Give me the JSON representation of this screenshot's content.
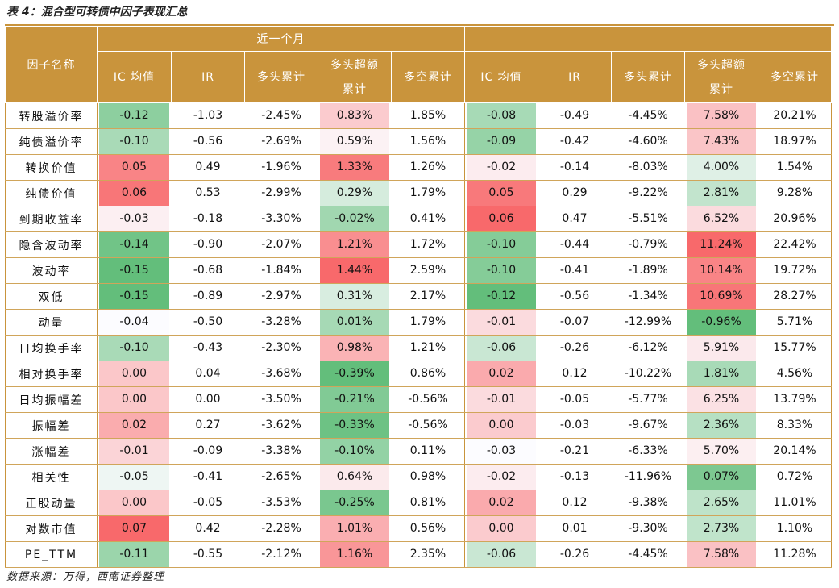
{
  "title": "表 4：混合型可转债中因子表现汇总",
  "source": "数据来源：万得，西南证券整理",
  "header": {
    "factor_col": "因子名称",
    "group1": "近一个月",
    "group2": "",
    "columns": [
      {
        "line1": "IC 均值",
        "line2": ""
      },
      {
        "line1": "IR",
        "line2": ""
      },
      {
        "line1": "多头累计",
        "line2": ""
      },
      {
        "line1": "多头超额",
        "line2": "累计"
      },
      {
        "line1": "多空累计",
        "line2": ""
      }
    ]
  },
  "colors": {
    "header_bg": "#c9943c",
    "green_strong": "#63be7b",
    "red_strong": "#f8696b"
  },
  "rows": [
    {
      "name": "转股溢价率",
      "v": [
        "-0.12",
        "-1.03",
        "-2.45%",
        "0.83%",
        "1.85%",
        "-0.08",
        "-0.49",
        "-4.45%",
        "7.58%",
        "20.21%"
      ]
    },
    {
      "name": "纯债溢价率",
      "v": [
        "-0.10",
        "-0.56",
        "-2.69%",
        "0.59%",
        "1.56%",
        "-0.09",
        "-0.42",
        "-4.60%",
        "7.43%",
        "18.97%"
      ]
    },
    {
      "name": "转换价值",
      "v": [
        "0.05",
        "0.49",
        "-1.96%",
        "1.33%",
        "1.26%",
        "-0.02",
        "-0.14",
        "-8.03%",
        "4.00%",
        "1.54%"
      ]
    },
    {
      "name": "纯债价值",
      "v": [
        "0.06",
        "0.53",
        "-2.99%",
        "0.29%",
        "1.79%",
        "0.05",
        "0.29",
        "-9.22%",
        "2.81%",
        "9.28%"
      ]
    },
    {
      "name": "到期收益率",
      "v": [
        "-0.03",
        "-0.18",
        "-3.30%",
        "-0.02%",
        "0.41%",
        "0.06",
        "0.47",
        "-5.51%",
        "6.52%",
        "20.96%"
      ]
    },
    {
      "name": "隐含波动率",
      "v": [
        "-0.14",
        "-0.90",
        "-2.07%",
        "1.21%",
        "1.72%",
        "-0.10",
        "-0.44",
        "-0.79%",
        "11.24%",
        "22.42%"
      ]
    },
    {
      "name": "波动率",
      "v": [
        "-0.15",
        "-0.68",
        "-1.84%",
        "1.44%",
        "2.59%",
        "-0.10",
        "-0.41",
        "-1.89%",
        "10.14%",
        "19.72%"
      ]
    },
    {
      "name": "双低",
      "v": [
        "-0.15",
        "-0.89",
        "-2.97%",
        "0.31%",
        "2.17%",
        "-0.12",
        "-0.56",
        "-1.34%",
        "10.69%",
        "28.27%"
      ]
    },
    {
      "name": "动量",
      "v": [
        "-0.04",
        "-0.50",
        "-3.28%",
        "0.01%",
        "1.79%",
        "-0.01",
        "-0.07",
        "-12.99%",
        "-0.96%",
        "5.71%"
      ]
    },
    {
      "name": "日均换手率",
      "v": [
        "-0.10",
        "-0.43",
        "-2.30%",
        "0.98%",
        "1.21%",
        "-0.06",
        "-0.26",
        "-6.12%",
        "5.91%",
        "15.77%"
      ]
    },
    {
      "name": "相对换手率",
      "v": [
        "0.00",
        "0.04",
        "-3.68%",
        "-0.39%",
        "0.86%",
        "0.02",
        "0.12",
        "-10.22%",
        "1.81%",
        "4.56%"
      ]
    },
    {
      "name": "日均振幅差",
      "v": [
        "0.00",
        "0.00",
        "-3.50%",
        "-0.21%",
        "-0.56%",
        "-0.01",
        "-0.05",
        "-5.77%",
        "6.25%",
        "13.79%"
      ]
    },
    {
      "name": "振幅差",
      "v": [
        "0.02",
        "0.27",
        "-3.62%",
        "-0.33%",
        "-0.56%",
        "0.00",
        "-0.03",
        "-9.67%",
        "2.36%",
        "8.33%"
      ]
    },
    {
      "name": "涨幅差",
      "v": [
        "-0.01",
        "-0.09",
        "-3.38%",
        "-0.10%",
        "0.11%",
        "-0.03",
        "-0.21",
        "-6.33%",
        "5.70%",
        "20.14%"
      ]
    },
    {
      "name": "相关性",
      "v": [
        "-0.05",
        "-0.41",
        "-2.65%",
        "0.64%",
        "0.98%",
        "-0.02",
        "-0.13",
        "-11.96%",
        "0.07%",
        "0.72%"
      ]
    },
    {
      "name": "正股动量",
      "v": [
        "0.00",
        "-0.05",
        "-3.53%",
        "-0.25%",
        "0.81%",
        "0.02",
        "0.12",
        "-9.38%",
        "2.65%",
        "11.01%"
      ]
    },
    {
      "name": "对数市值",
      "v": [
        "0.07",
        "0.42",
        "-2.28%",
        "1.01%",
        "0.56%",
        "0.00",
        "0.01",
        "-9.30%",
        "2.73%",
        "1.10%"
      ]
    },
    {
      "name": "PE_TTM",
      "v": [
        "-0.11",
        "-0.55",
        "-2.12%",
        "1.16%",
        "2.35%",
        "-0.06",
        "-0.26",
        "-4.45%",
        "7.58%",
        "11.28%"
      ]
    }
  ]
}
